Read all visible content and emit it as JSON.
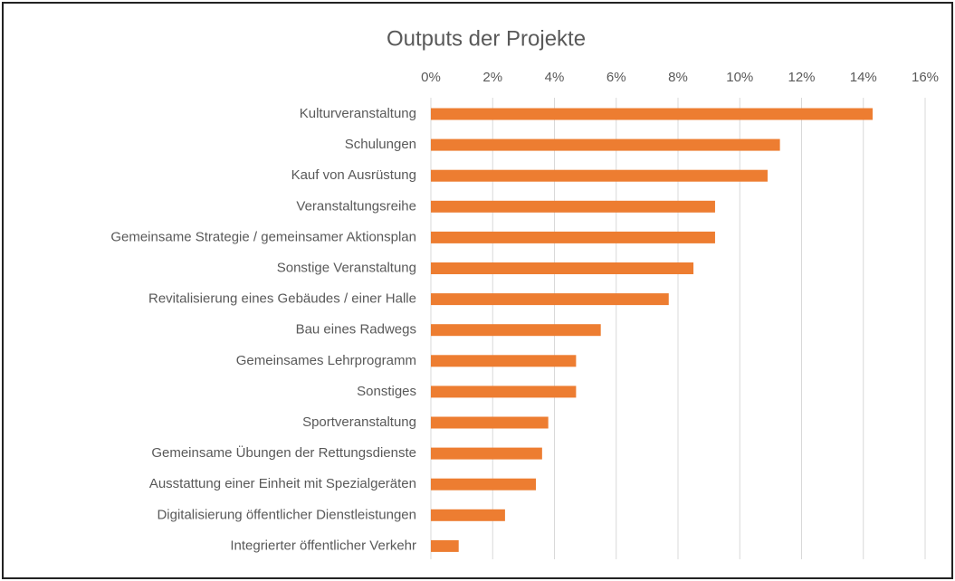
{
  "chart_data": {
    "type": "bar",
    "orientation": "horizontal",
    "title": "Outputs der Projekte",
    "categories": [
      "Kulturveranstaltung",
      "Schulungen",
      "Kauf von Ausrüstung",
      "Veranstaltungsreihe",
      "Gemeinsame Strategie / gemeinsamer Aktionsplan",
      "Sonstige Veranstaltung",
      "Revitalisierung eines Gebäudes / einer Halle",
      "Bau eines Radwegs",
      "Gemeinsames Lehrprogramm",
      "Sonstiges",
      "Sportveranstaltung",
      "Gemeinsame Übungen der Rettungsdienste",
      "Ausstattung einer Einheit mit Spezialgeräten",
      "Digitalisierung öffentlicher Dienstleistungen",
      "Integrierter öffentlicher Verkehr"
    ],
    "values": [
      14.3,
      11.3,
      10.9,
      9.2,
      9.2,
      8.5,
      7.7,
      5.5,
      4.7,
      4.7,
      3.8,
      3.6,
      3.4,
      2.4,
      0.9
    ],
    "color": "#ed7d31",
    "xlim": [
      0,
      16
    ],
    "xticks": [
      {
        "value": 0,
        "label": "0%"
      },
      {
        "value": 2,
        "label": "2%"
      },
      {
        "value": 4,
        "label": "4%"
      },
      {
        "value": 6,
        "label": "6%"
      },
      {
        "value": 8,
        "label": "8%"
      },
      {
        "value": 10,
        "label": "10%"
      },
      {
        "value": 12,
        "label": "12%"
      },
      {
        "value": 14,
        "label": "14%"
      },
      {
        "value": 16,
        "label": "16%"
      }
    ],
    "grid": true
  }
}
